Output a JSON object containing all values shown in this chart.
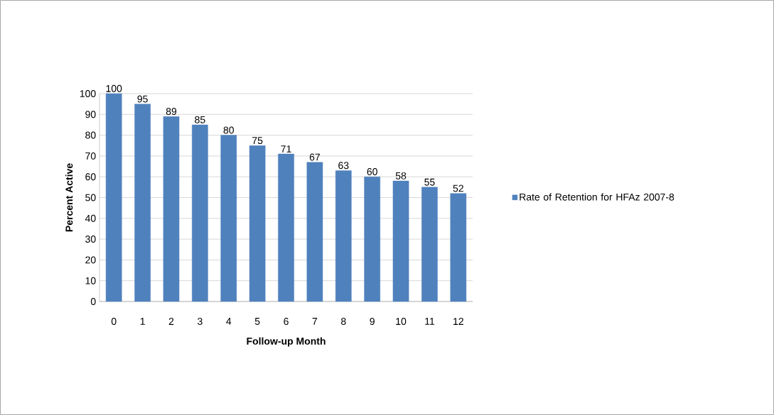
{
  "chart_data": {
    "type": "bar",
    "xlabel": "Follow-up Month",
    "ylabel": "Percent Active",
    "categories": [
      "0",
      "1",
      "2",
      "3",
      "4",
      "5",
      "6",
      "7",
      "8",
      "9",
      "10",
      "11",
      "12"
    ],
    "series": [
      {
        "name": "Rate of Retention for HFAz 2007-8",
        "color": "#4f81bd",
        "values": [
          100,
          95,
          89,
          85,
          80,
          75,
          71,
          67,
          63,
          60,
          58,
          55,
          52
        ]
      }
    ],
    "ylim": [
      0,
      100
    ],
    "yticks": [
      0,
      10,
      20,
      30,
      40,
      50,
      60,
      70,
      80,
      90,
      100
    ],
    "grid": "y",
    "legend": "right",
    "data_labels": true
  }
}
